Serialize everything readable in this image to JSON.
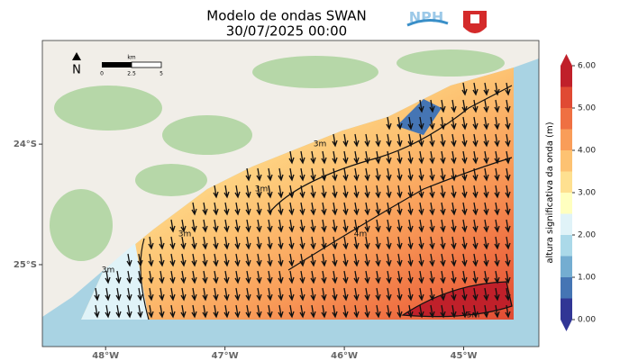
{
  "chart_data": {
    "type": "map",
    "title": "Modelo de ondas SWAN",
    "subtitle": "30/07/2025 00:00",
    "logo_text": "NPH",
    "north_label": "N",
    "scale_bar": {
      "unit": "km",
      "labels": [
        "0",
        "2.5",
        "5"
      ]
    },
    "xlim": [
      -48.53,
      -44.37
    ],
    "ylim": [
      -25.68,
      -23.14
    ],
    "xticks": [
      {
        "value": -48,
        "label": "48°W"
      },
      {
        "value": -47,
        "label": "47°W"
      },
      {
        "value": -46,
        "label": "46°W"
      },
      {
        "value": -45,
        "label": "45°W"
      }
    ],
    "yticks": [
      {
        "value": -24,
        "label": "24°S"
      },
      {
        "value": -25,
        "label": "25°S"
      }
    ],
    "contour_labels": [
      "3m",
      "3m",
      "3m",
      "3m",
      "4m",
      "5m"
    ],
    "colorbar": {
      "label": "altura significativa da onda (m)",
      "levels": [
        0,
        0.5,
        1,
        1.5,
        2,
        2.5,
        3,
        3.5,
        4,
        4.5,
        5,
        5.5,
        6
      ],
      "colors": [
        "#313695",
        "#4575b4",
        "#74add1",
        "#abd9e9",
        "#e0f3f8",
        "#ffffbf",
        "#fee090",
        "#fdc272",
        "#f99d59",
        "#ef7042",
        "#e04a33",
        "#c0202a"
      ],
      "ticks": [
        {
          "value": 0,
          "label": "0.00"
        },
        {
          "value": 1,
          "label": "1.00"
        },
        {
          "value": 2,
          "label": "2.00"
        },
        {
          "value": 3,
          "label": "3.00"
        },
        {
          "value": 4,
          "label": "4.00"
        },
        {
          "value": 5,
          "label": "5.00"
        },
        {
          "value": 6,
          "label": "6.00"
        }
      ]
    }
  }
}
